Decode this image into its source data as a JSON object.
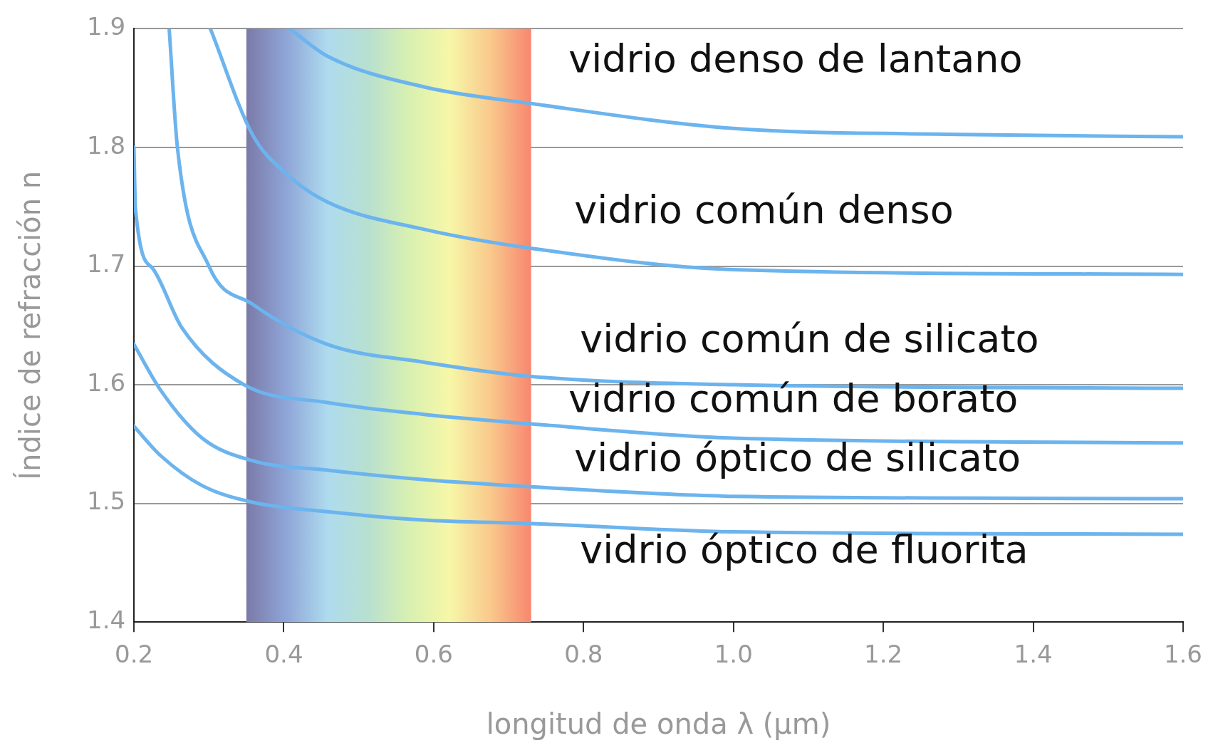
{
  "chart_data": {
    "type": "line",
    "xlabel": "longitud de onda λ (µm)",
    "ylabel": "Índice de refracción n",
    "xlim": [
      0.2,
      1.6
    ],
    "ylim": [
      1.4,
      1.9
    ],
    "xticks": [
      0.2,
      0.4,
      0.6,
      0.8,
      {
        "value": 1,
        "label": "1.0"
      },
      1.2,
      1.4,
      1.6
    ],
    "yticks": [
      1.4,
      1.5,
      1.6,
      1.7,
      1.8,
      1.9
    ],
    "grid": "y",
    "legend": false,
    "marker": "none",
    "line_style": "solid",
    "bands": [
      {
        "axis": "x",
        "from": 0.35,
        "to": 0.73
      }
    ],
    "series": [
      {
        "name": "vidrio denso de lantano",
        "color": "#6cb4ee",
        "x": [
          0.408,
          0.458,
          0.587,
          0.73,
          1.0,
          1.3,
          1.6
        ],
        "values": [
          1.9,
          1.877,
          1.851,
          1.837,
          1.816,
          1.811,
          1.809
        ]
      },
      {
        "name": "vidrio común denso",
        "color": "#6cb4ee",
        "x": [
          0.302,
          0.358,
          0.403,
          0.458,
          0.587,
          0.73,
          1.0,
          1.6
        ],
        "values": [
          1.9,
          1.811,
          1.778,
          1.754,
          1.731,
          1.715,
          1.697,
          1.693
        ]
      },
      {
        "name": "vidrio común de silicato",
        "color": "#6cb4ee",
        "x": [
          0.247,
          0.258,
          0.3,
          0.358,
          0.458,
          0.587,
          0.73,
          1.0,
          1.6
        ],
        "values": [
          1.9,
          1.8,
          1.7,
          1.668,
          1.634,
          1.619,
          1.607,
          1.6,
          1.597
        ]
      },
      {
        "name": "vidrio común de borato",
        "color": "#6cb4ee",
        "x": [
          0.2,
          0.202,
          0.225,
          0.264,
          0.347,
          0.458,
          0.587,
          0.73,
          1.0,
          1.6
        ],
        "values": [
          1.8,
          1.748,
          1.698,
          1.648,
          1.6,
          1.585,
          1.575,
          1.567,
          1.555,
          1.551
        ]
      },
      {
        "name": "vidrio óptico de silicato",
        "color": "#6cb4ee",
        "x": [
          0.2,
          0.236,
          0.291,
          0.358,
          0.458,
          0.587,
          0.73,
          1.0,
          1.6
        ],
        "values": [
          1.634,
          1.595,
          1.555,
          1.536,
          1.528,
          1.52,
          1.514,
          1.506,
          1.504
        ]
      },
      {
        "name": "vidrio óptico de fluorita",
        "color": "#6cb4ee",
        "x": [
          0.2,
          0.236,
          0.291,
          0.358,
          0.458,
          0.587,
          0.73,
          1.0,
          1.6
        ],
        "values": [
          1.565,
          1.54,
          1.515,
          1.501,
          1.493,
          1.486,
          1.483,
          1.476,
          1.474
        ]
      }
    ]
  }
}
